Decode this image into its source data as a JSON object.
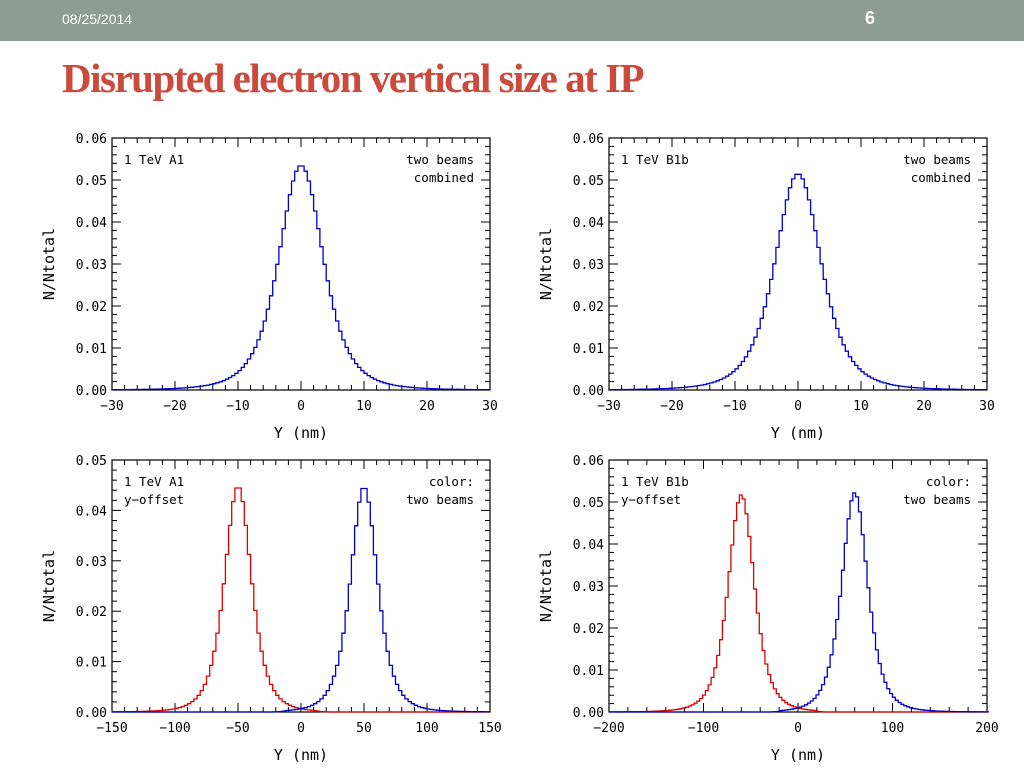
{
  "header": {
    "date": "08/25/2014",
    "page_number": "6",
    "bar_color": "#8e9d94"
  },
  "slide": {
    "title": "Disrupted electron vertical size at IP",
    "title_color": "#cc4a3c"
  },
  "chart_data": [
    {
      "type": "line",
      "step": true,
      "xlabel": "Y (nm)",
      "ylabel": "N/Ntotal",
      "xlim": [
        -30,
        30
      ],
      "ylim": [
        0,
        0.06
      ],
      "xticks": [
        "−30",
        "−20",
        "−10",
        "0",
        "10",
        "20",
        "30"
      ],
      "yticks": [
        "0.00",
        "0.01",
        "0.02",
        "0.03",
        "0.04",
        "0.05",
        "0.06"
      ],
      "annotation_left": [
        "1 TeV A1"
      ],
      "annotation_right": [
        "two beams",
        "combined"
      ],
      "grid": false,
      "series": [
        {
          "color": "#0000cc",
          "center": 0,
          "peak": 0.0535,
          "width": 4.6,
          "shape": 2.2,
          "bin": 0.5
        }
      ]
    },
    {
      "type": "line",
      "step": true,
      "xlabel": "Y (nm)",
      "ylabel": "N/Ntotal",
      "xlim": [
        -30,
        30
      ],
      "ylim": [
        0,
        0.06
      ],
      "xticks": [
        "−30",
        "−20",
        "−10",
        "0",
        "10",
        "20",
        "30"
      ],
      "yticks": [
        "0.00",
        "0.01",
        "0.02",
        "0.03",
        "0.04",
        "0.05",
        "0.06"
      ],
      "annotation_left": [
        "1 TeV B1b"
      ],
      "annotation_right": [
        "two beams",
        "combined"
      ],
      "grid": false,
      "series": [
        {
          "color": "#0000cc",
          "center": 0,
          "peak": 0.0515,
          "width": 4.8,
          "shape": 2.2,
          "bin": 0.5
        }
      ]
    },
    {
      "type": "line",
      "step": true,
      "xlabel": "Y (nm)",
      "ylabel": "N/Ntotal",
      "xlim": [
        -150,
        150
      ],
      "ylim": [
        0,
        0.05
      ],
      "xticks": [
        "−150",
        "−100",
        "−50",
        "0",
        "50",
        "100",
        "150"
      ],
      "yticks": [
        "0.00",
        "0.01",
        "0.02",
        "0.03",
        "0.04",
        "0.05"
      ],
      "annotation_left": [
        "1 TeV A1",
        "y−offset"
      ],
      "annotation_right": [
        "color:",
        "two beams"
      ],
      "grid": false,
      "series": [
        {
          "color": "#dd0000",
          "center": -50,
          "peak": 0.0448,
          "width": 14,
          "shape": 2.2,
          "bin": 2.5,
          "cutoff": 12
        },
        {
          "color": "#0000cc",
          "center": 50,
          "peak": 0.0447,
          "width": 14,
          "shape": 2.2,
          "bin": 2.5,
          "cutoff": -12
        }
      ]
    },
    {
      "type": "line",
      "step": true,
      "xlabel": "Y (nm)",
      "ylabel": "N/Ntotal",
      "xlim": [
        -200,
        200
      ],
      "ylim": [
        0,
        0.06
      ],
      "xticks": [
        "−200",
        "−100",
        "0",
        "100",
        "200"
      ],
      "yticks": [
        "0.00",
        "0.01",
        "0.02",
        "0.03",
        "0.04",
        "0.05",
        "0.06"
      ],
      "annotation_left": [
        "1 TeV B1b",
        "y−offset"
      ],
      "annotation_right": [
        "color:",
        "two beams"
      ],
      "grid": false,
      "series": [
        {
          "color": "#dd0000",
          "center": -60,
          "peak": 0.0517,
          "width": 18,
          "shape": 2.2,
          "bin": 3,
          "cutoff": 18
        },
        {
          "color": "#0000cc",
          "center": 60,
          "peak": 0.0522,
          "width": 18,
          "shape": 2.2,
          "bin": 3,
          "cutoff": -18
        }
      ]
    }
  ]
}
